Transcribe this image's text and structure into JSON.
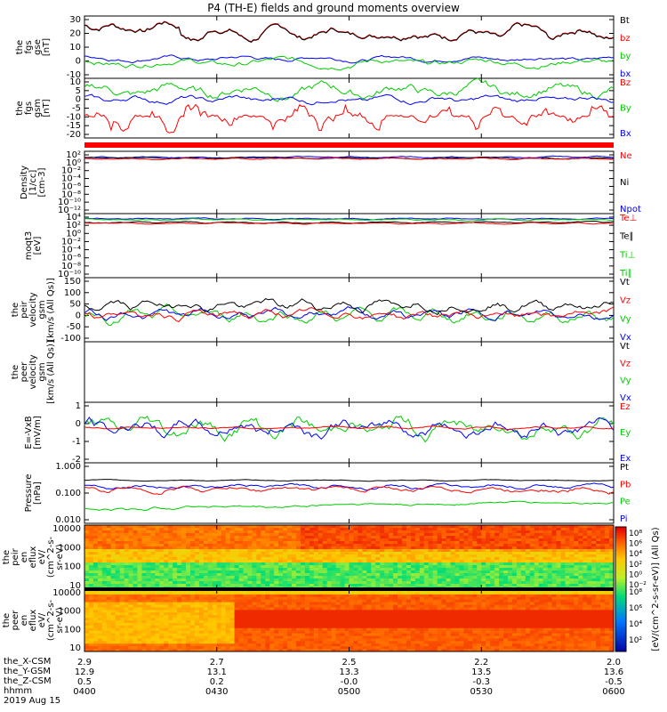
{
  "title": "P4 (TH-E) fields and ground moments overview",
  "panels": [
    {
      "id": "fgs_gse",
      "ylabel": [
        "the",
        "fgs",
        "gse",
        "[nT]"
      ],
      "yticks": [
        "30",
        "20",
        "10",
        "0",
        "-10"
      ],
      "legend": [
        {
          "t": "Bt",
          "c": "#000000"
        },
        {
          "t": "bz",
          "c": "#ff0000"
        },
        {
          "t": "by",
          "c": "#00cc00"
        },
        {
          "t": "bx",
          "c": "#0000ff"
        }
      ]
    },
    {
      "id": "fgs_gsm",
      "ylabel": [
        "the",
        "fgs",
        "gsm",
        "[nT]"
      ],
      "yticks": [
        "10",
        "5",
        "0",
        "-5",
        "-10",
        "-15",
        "-20"
      ],
      "legend": [
        {
          "t": "Bz",
          "c": "#ff0000"
        },
        {
          "t": "By",
          "c": "#00cc00"
        },
        {
          "t": "Bx",
          "c": "#0000ff"
        }
      ]
    },
    {
      "id": "density",
      "ylabel": [
        "Density",
        "[1/cc]",
        "[cm-3]"
      ],
      "yticks": [
        "10²",
        "10⁰",
        "10⁻²",
        "10⁻⁴",
        "10⁻⁶",
        "10⁻⁸",
        "10⁻¹⁰",
        "10⁻¹²"
      ],
      "legend": [
        {
          "t": "Ne",
          "c": "#ff0000"
        },
        {
          "t": "Ni",
          "c": "#000000"
        },
        {
          "t": "Npot",
          "c": "#0000ff"
        }
      ]
    },
    {
      "id": "temp",
      "ylabel": [
        "moqt3",
        "[eV]"
      ],
      "yticks": [
        "10⁴",
        "10²",
        "10⁰",
        "10⁻²",
        "10⁻⁴",
        "10⁻⁶",
        "10⁻⁸",
        "10⁻¹⁰"
      ],
      "legend": [
        {
          "t": "Te⊥",
          "c": "#ff0000"
        },
        {
          "t": "Te∥",
          "c": "#000000"
        },
        {
          "t": "Ti⊥",
          "c": "#00cc00"
        },
        {
          "t": "Ti∥",
          "c": "#00cc00"
        }
      ]
    },
    {
      "id": "peir_vel",
      "ylabel": [
        "the",
        "peir",
        "velocity",
        "gsm",
        "[km/s (All Qs)]"
      ],
      "yticks": [
        "150",
        "100",
        "50",
        "0",
        "-50",
        "-100"
      ],
      "legend": [
        {
          "t": "Vt",
          "c": "#000000"
        },
        {
          "t": "Vz",
          "c": "#ff0000"
        },
        {
          "t": "Vy",
          "c": "#00cc00"
        },
        {
          "t": "Vx",
          "c": "#0000ff"
        }
      ]
    },
    {
      "id": "peer_vel",
      "ylabel": [
        "the",
        "peer",
        "velocity",
        "gsm",
        "[km/s (All Qs)]"
      ],
      "yticks": [],
      "legend": [
        {
          "t": "Vt",
          "c": "#000000"
        },
        {
          "t": "Vz",
          "c": "#ff0000"
        },
        {
          "t": "Vy",
          "c": "#00cc00"
        },
        {
          "t": "Vx",
          "c": "#0000ff"
        }
      ]
    },
    {
      "id": "efield",
      "ylabel": [
        "E=-VxB",
        "[mV/m]"
      ],
      "yticks": [
        "1",
        "0",
        "-1",
        "-2"
      ],
      "legend": [
        {
          "t": "Ez",
          "c": "#ff0000"
        },
        {
          "t": "Ey",
          "c": "#00cc00"
        },
        {
          "t": "Ex",
          "c": "#0000ff"
        }
      ]
    },
    {
      "id": "pressure",
      "ylabel": [
        "Pressure",
        "[nPa]"
      ],
      "yticks": [
        "1.000",
        "0.100",
        "0.010"
      ],
      "legend": [
        {
          "t": "Pt",
          "c": "#000000"
        },
        {
          "t": "Pb",
          "c": "#ff0000"
        },
        {
          "t": "Pe",
          "c": "#00cc00"
        },
        {
          "t": "Pi",
          "c": "#0000ff"
        }
      ]
    },
    {
      "id": "peir_spec",
      "ylabel": [
        "the",
        "peir",
        "en",
        "eflux",
        "eV/",
        "(cm^2-s-",
        "sr-eV)"
      ],
      "yticks": [
        "10000",
        "1000",
        "100",
        "10"
      ],
      "legend": []
    },
    {
      "id": "peer_spec",
      "ylabel": [
        "the",
        "peer",
        "en",
        "eflux",
        "eV/",
        "(cm^2-s-",
        "sr-eV)"
      ],
      "yticks": [
        "10000",
        "1000",
        "100",
        "10"
      ],
      "legend": []
    }
  ],
  "colorbar": {
    "ticks": [
      "10⁸",
      "10⁶",
      "10⁴",
      "10²",
      "10⁰",
      "10⁻²"
    ],
    "ticks2": [
      "10⁸",
      "10⁶",
      "10⁴",
      "10²"
    ],
    "label": "[eV/(cm^2-s-sr-eV)] (All Qs)"
  },
  "xaxis": {
    "rows": [
      {
        "label": "the_X-CSM",
        "values": [
          "2.9",
          "2.7",
          "2.5",
          "2.2",
          "2.0"
        ]
      },
      {
        "label": "the_Y-GSM",
        "values": [
          "12.9",
          "13.1",
          "13.3",
          "13.5",
          "13.6"
        ]
      },
      {
        "label": "the_Z-CSM",
        "values": [
          "0.5",
          "0.2",
          "-0.0",
          "-0.3",
          "-0.5"
        ]
      },
      {
        "label": "hhmm",
        "values": [
          "0400",
          "0430",
          "0500",
          "0530",
          "0600"
        ]
      }
    ],
    "date": "2019 Aug 15"
  },
  "chart_data": {
    "type": "line",
    "time_range": [
      "0400",
      "0600"
    ],
    "series": [
      {
        "name": "Bt",
        "panel": "fgs_gse",
        "approx_range": [
          12,
          28
        ]
      },
      {
        "name": "bz",
        "panel": "fgs_gse",
        "approx_range": [
          12,
          28
        ]
      },
      {
        "name": "by",
        "panel": "fgs_gse",
        "approx_range": [
          -10,
          2
        ]
      },
      {
        "name": "bx",
        "panel": "fgs_gse",
        "approx_range": [
          -2,
          3
        ]
      },
      {
        "name": "Bz",
        "panel": "fgs_gsm",
        "approx_range": [
          -20,
          -2
        ]
      },
      {
        "name": "By",
        "panel": "fgs_gsm",
        "approx_range": [
          -5,
          9
        ]
      },
      {
        "name": "Bx",
        "panel": "fgs_gsm",
        "approx_range": [
          -3,
          3
        ]
      },
      {
        "name": "Vt",
        "panel": "peir_vel",
        "approx_range": [
          0,
          100
        ]
      },
      {
        "name": "Ey",
        "panel": "efield",
        "approx_range": [
          -2,
          1.5
        ]
      },
      {
        "name": "Pt",
        "panel": "pressure",
        "approx_range": [
          0.3,
          0.4
        ]
      },
      {
        "name": "Pb",
        "panel": "pressure",
        "approx_range": [
          0.1,
          0.2
        ]
      },
      {
        "name": "Pe",
        "panel": "pressure",
        "approx_range": [
          0.01,
          0.04
        ]
      }
    ]
  }
}
